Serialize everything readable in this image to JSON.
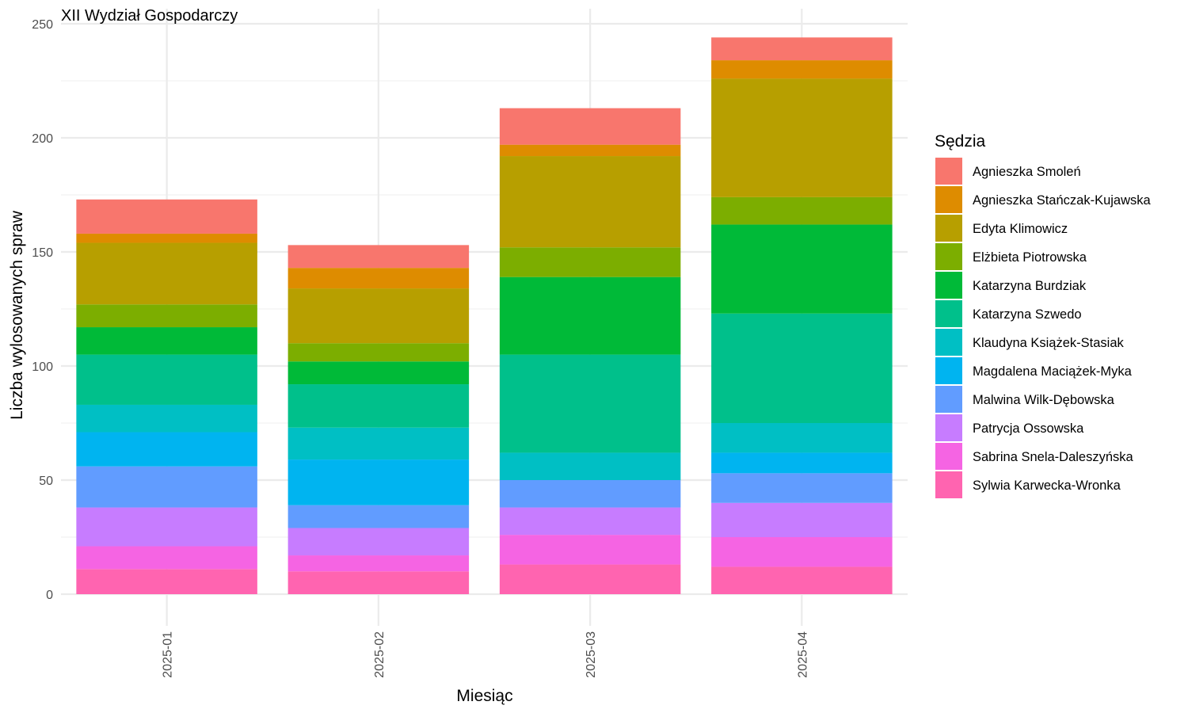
{
  "chart_data": {
    "type": "bar",
    "stacked": true,
    "title": "XII Wydział Gospodarczy",
    "xlabel": "Miesiąc",
    "ylabel": "Liczba wylosowanych spraw",
    "ylim": [
      0,
      250
    ],
    "yticks": [
      0,
      50,
      100,
      150,
      200,
      250
    ],
    "grid": true,
    "legend_title": "Sędzia",
    "legend_position": "right",
    "categories": [
      "2025-01",
      "2025-02",
      "2025-03",
      "2025-04"
    ],
    "series": [
      {
        "name": "Agnieszka Smoleń",
        "color": "#F8766D",
        "values": [
          15,
          10,
          16,
          10
        ]
      },
      {
        "name": "Agnieszka Stańczak-Kujawska",
        "color": "#DE8C00",
        "values": [
          4,
          9,
          5,
          8
        ]
      },
      {
        "name": "Edyta Klimowicz",
        "color": "#B79F00",
        "values": [
          27,
          24,
          40,
          52
        ]
      },
      {
        "name": "Elżbieta Piotrowska",
        "color": "#7CAE00",
        "values": [
          10,
          8,
          13,
          12
        ]
      },
      {
        "name": "Katarzyna Burdziak",
        "color": "#00BA38",
        "values": [
          12,
          10,
          34,
          39
        ]
      },
      {
        "name": "Katarzyna Szwedo",
        "color": "#00C08B",
        "values": [
          22,
          19,
          43,
          48
        ]
      },
      {
        "name": "Klaudyna Książek-Stasiak",
        "color": "#00BFC4",
        "values": [
          12,
          14,
          12,
          13
        ]
      },
      {
        "name": "Magdalena Maciążek-Myka",
        "color": "#00B4F0",
        "values": [
          15,
          20,
          0,
          9
        ]
      },
      {
        "name": "Malwina Wilk-Dębowska",
        "color": "#619CFF",
        "values": [
          18,
          10,
          12,
          13
        ]
      },
      {
        "name": "Patrycja Ossowska",
        "color": "#C77CFF",
        "values": [
          17,
          12,
          12,
          15
        ]
      },
      {
        "name": "Sabrina Snela-Daleszyńska",
        "color": "#F564E3",
        "values": [
          10,
          7,
          13,
          13
        ]
      },
      {
        "name": "Sylwia Karwecka-Wronka",
        "color": "#FF64B0",
        "values": [
          11,
          10,
          13,
          12
        ]
      }
    ]
  }
}
